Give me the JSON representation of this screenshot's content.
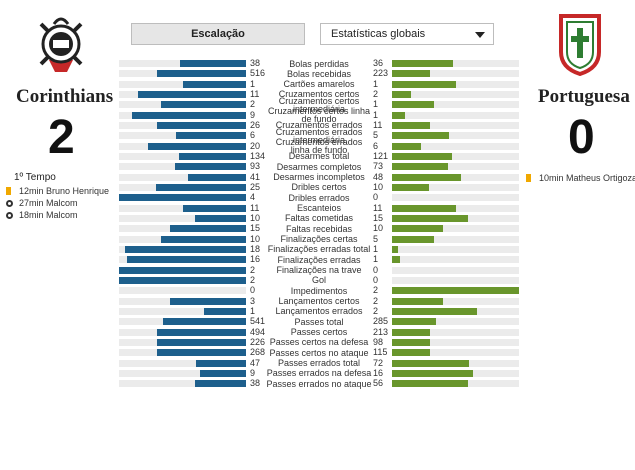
{
  "tabs": {
    "lineup": "Escalação",
    "stats_select": "Estatísticas globais"
  },
  "colors": {
    "home": "#1d5f8c",
    "away": "#69962c",
    "card": "#f0a800"
  },
  "home": {
    "name": "Corinthians",
    "score": "2",
    "crest": "corinthians-crest"
  },
  "away": {
    "name": "Portuguesa",
    "score": "0",
    "crest": "portuguesa-crest"
  },
  "period_label": "1º Tempo",
  "home_events": [
    {
      "icon": "yellow-card",
      "text": "12min Bruno Henrique"
    },
    {
      "icon": "ball",
      "text": "27min Malcom"
    },
    {
      "icon": "ball",
      "text": "18min Malcom"
    }
  ],
  "away_events": [
    {
      "icon": "yellow-card",
      "text": "10min Matheus Ortigoza"
    }
  ],
  "stats": [
    {
      "label": "Bolas perdidas",
      "home": "38",
      "away": "36",
      "home_pct": 0.52,
      "away_pct": 0.48
    },
    {
      "label": "Bolas recebidas",
      "home": "516",
      "away": "223",
      "home_pct": 0.7,
      "away_pct": 0.3
    },
    {
      "label": "Cartões amarelos",
      "home": "1",
      "away": "1",
      "home_pct": 0.5,
      "away_pct": 0.5
    },
    {
      "label": "Cruzamentos certos",
      "home": "11",
      "away": "2",
      "home_pct": 0.85,
      "away_pct": 0.15
    },
    {
      "label": "Cruzamentos certos intermediária",
      "home": "2",
      "away": "1",
      "home_pct": 0.67,
      "away_pct": 0.33
    },
    {
      "label": "Cruzamentos certos linha de fundo",
      "home": "9",
      "away": "1",
      "home_pct": 0.9,
      "away_pct": 0.1
    },
    {
      "label": "Cruzamentos errados",
      "home": "26",
      "away": "11",
      "home_pct": 0.7,
      "away_pct": 0.3
    },
    {
      "label": "Cruzamentos errados intermediária",
      "home": "6",
      "away": "5",
      "home_pct": 0.55,
      "away_pct": 0.45
    },
    {
      "label": "Cruzamentos errados linha de fundo",
      "home": "20",
      "away": "6",
      "home_pct": 0.77,
      "away_pct": 0.23
    },
    {
      "label": "Desarmes total",
      "home": "134",
      "away": "121",
      "home_pct": 0.53,
      "away_pct": 0.47
    },
    {
      "label": "Desarmes completos",
      "home": "93",
      "away": "73",
      "home_pct": 0.56,
      "away_pct": 0.44
    },
    {
      "label": "Desarmes incompletos",
      "home": "41",
      "away": "48",
      "home_pct": 0.46,
      "away_pct": 0.54
    },
    {
      "label": "Dribles certos",
      "home": "25",
      "away": "10",
      "home_pct": 0.71,
      "away_pct": 0.29
    },
    {
      "label": "Dribles errados",
      "home": "4",
      "away": "0",
      "home_pct": 1.0,
      "away_pct": 0.0
    },
    {
      "label": "Escanteios",
      "home": "11",
      "away": "11",
      "home_pct": 0.5,
      "away_pct": 0.5
    },
    {
      "label": "Faltas cometidas",
      "home": "10",
      "away": "15",
      "home_pct": 0.4,
      "away_pct": 0.6
    },
    {
      "label": "Faltas recebidas",
      "home": "15",
      "away": "10",
      "home_pct": 0.6,
      "away_pct": 0.4
    },
    {
      "label": "Finalizações certas",
      "home": "10",
      "away": "5",
      "home_pct": 0.67,
      "away_pct": 0.33
    },
    {
      "label": "Finalizações erradas total",
      "home": "18",
      "away": "1",
      "home_pct": 0.95,
      "away_pct": 0.05
    },
    {
      "label": "Finalizações erradas",
      "home": "16",
      "away": "1",
      "home_pct": 0.94,
      "away_pct": 0.06
    },
    {
      "label": "Finalizações na trave",
      "home": "2",
      "away": "0",
      "home_pct": 1.0,
      "away_pct": 0.0
    },
    {
      "label": "Gol",
      "home": "2",
      "away": "0",
      "home_pct": 1.0,
      "away_pct": 0.0
    },
    {
      "label": "Impedimentos",
      "home": "0",
      "away": "2",
      "home_pct": 0.0,
      "away_pct": 1.0
    },
    {
      "label": "Lançamentos certos",
      "home": "3",
      "away": "2",
      "home_pct": 0.6,
      "away_pct": 0.4
    },
    {
      "label": "Lançamentos errados",
      "home": "1",
      "away": "2",
      "home_pct": 0.33,
      "away_pct": 0.67
    },
    {
      "label": "Passes total",
      "home": "541",
      "away": "285",
      "home_pct": 0.65,
      "away_pct": 0.35
    },
    {
      "label": "Passes certos",
      "home": "494",
      "away": "213",
      "home_pct": 0.7,
      "away_pct": 0.3
    },
    {
      "label": "Passes certos na defesa",
      "home": "226",
      "away": "98",
      "home_pct": 0.7,
      "away_pct": 0.3
    },
    {
      "label": "Passes certos no ataque",
      "home": "268",
      "away": "115",
      "home_pct": 0.7,
      "away_pct": 0.3
    },
    {
      "label": "Passes errados total",
      "home": "47",
      "away": "72",
      "home_pct": 0.39,
      "away_pct": 0.61
    },
    {
      "label": "Passes errados na defesa",
      "home": "9",
      "away": "16",
      "home_pct": 0.36,
      "away_pct": 0.64
    },
    {
      "label": "Passes errados no ataque",
      "home": "38",
      "away": "56",
      "home_pct": 0.4,
      "away_pct": 0.6
    }
  ]
}
